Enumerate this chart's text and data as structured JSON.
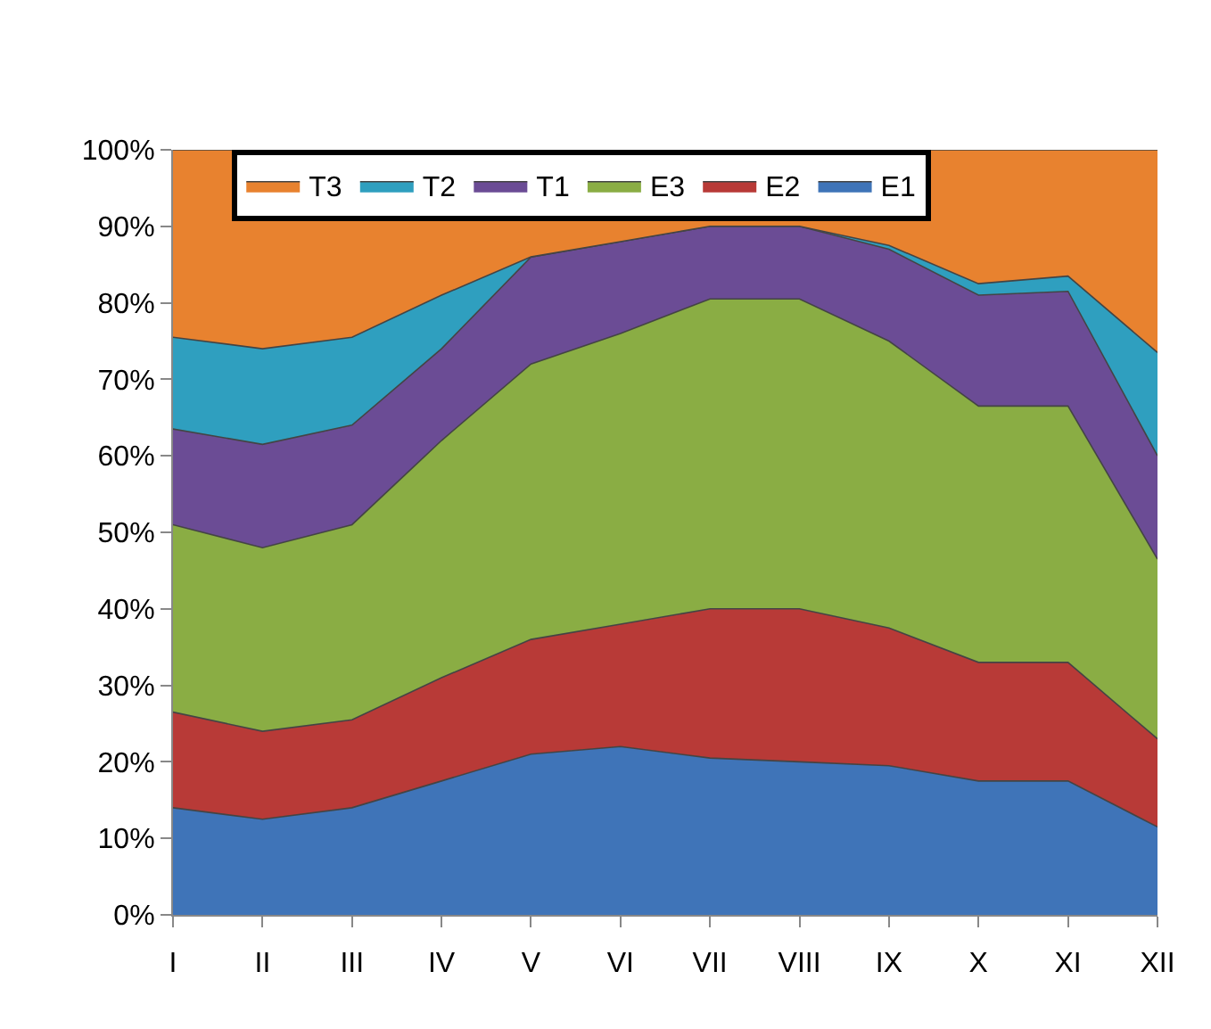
{
  "chart_data": {
    "type": "area",
    "stacked": true,
    "legend": "top",
    "categories": [
      "I",
      "II",
      "III",
      "IV",
      "V",
      "VI",
      "VII",
      "VIII",
      "IX",
      "X",
      "XI",
      "XII"
    ],
    "ylim": [
      0,
      100
    ],
    "yticks": [
      {
        "value": 0,
        "label": "0%"
      },
      {
        "value": 10,
        "label": "10%"
      },
      {
        "value": 20,
        "label": "20%"
      },
      {
        "value": 30,
        "label": "30%"
      },
      {
        "value": 40,
        "label": "40%"
      },
      {
        "value": 50,
        "label": "50%"
      },
      {
        "value": 60,
        "label": "60%"
      },
      {
        "value": 70,
        "label": "70%"
      },
      {
        "value": 80,
        "label": "80%"
      },
      {
        "value": 90,
        "label": "90%"
      },
      {
        "value": 100,
        "label": "100%"
      }
    ],
    "series": [
      {
        "name": "E1",
        "color": "#3f74b8",
        "values": [
          14,
          12.5,
          14,
          17.5,
          21,
          22,
          20.5,
          20,
          19.5,
          17.5,
          17.5,
          11.5
        ]
      },
      {
        "name": "E2",
        "color": "#b83a37",
        "values": [
          12.5,
          11.5,
          11.5,
          13.5,
          15,
          16,
          19.5,
          20,
          18,
          15.5,
          15.5,
          11.5
        ]
      },
      {
        "name": "E3",
        "color": "#8aad44",
        "values": [
          24.5,
          24,
          25.5,
          31,
          36,
          38,
          40.5,
          40.5,
          37.5,
          33.5,
          33.5,
          23.5
        ]
      },
      {
        "name": "T1",
        "color": "#6b4c95",
        "values": [
          12.5,
          13.5,
          13,
          12,
          14,
          12,
          9.5,
          9.5,
          12,
          14.5,
          15,
          13.5
        ]
      },
      {
        "name": "T2",
        "color": "#2f9fbf",
        "values": [
          12,
          12.5,
          11.5,
          7,
          0,
          0,
          0,
          0,
          0.5,
          1.5,
          2,
          13.5
        ]
      },
      {
        "name": "T3",
        "color": "#e8822f",
        "values": [
          24.5,
          26,
          24.5,
          19,
          14,
          12,
          10,
          10,
          12.5,
          17.5,
          16.5,
          26.5
        ]
      }
    ]
  }
}
